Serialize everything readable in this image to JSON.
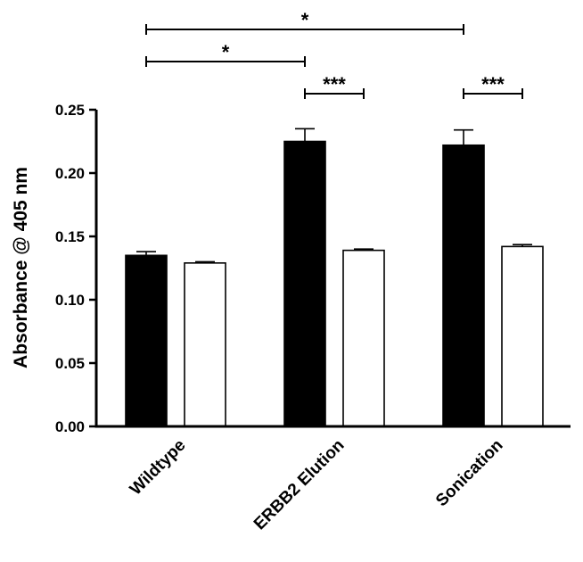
{
  "chart_data": {
    "type": "bar",
    "title": "",
    "xlabel": "",
    "ylabel": "Absorbance @ 405 nm",
    "ylim": [
      0,
      0.25
    ],
    "yticks": [
      "0.00",
      "0.05",
      "0.10",
      "0.15",
      "0.20",
      "0.25"
    ],
    "categories": [
      "Wildtype",
      "ERBB2 Elution",
      "Sonication"
    ],
    "series": [
      {
        "values": [
          0.135,
          0.225,
          0.222
        ],
        "errors": [
          0.003,
          0.01,
          0.012
        ],
        "fill": "#000000"
      },
      {
        "values": [
          0.129,
          0.139,
          0.142
        ],
        "errors": [
          0.001,
          0.001,
          0.0015
        ],
        "fill": "#ffffff"
      }
    ],
    "grid": false,
    "legend": "none",
    "significance": [
      {
        "label": "*",
        "from": [
          0,
          0
        ],
        "to": [
          2,
          0
        ],
        "level": 1
      },
      {
        "label": "*",
        "from": [
          0,
          0
        ],
        "to": [
          1,
          0
        ],
        "level": 2
      },
      {
        "label": "***",
        "from": [
          1,
          0
        ],
        "to": [
          1,
          1
        ],
        "level": 3
      },
      {
        "label": "***",
        "from": [
          2,
          0
        ],
        "to": [
          2,
          1
        ],
        "level": 3
      }
    ]
  }
}
